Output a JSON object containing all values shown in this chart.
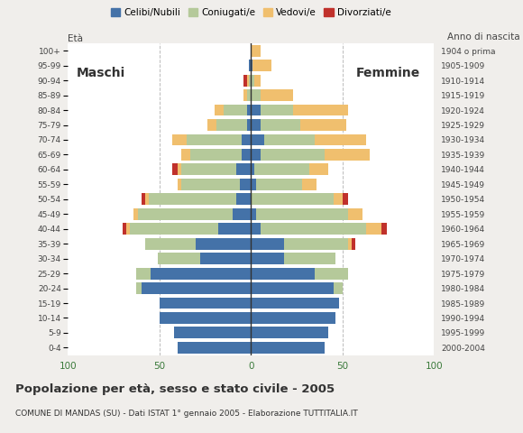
{
  "age_groups": [
    "0-4",
    "5-9",
    "10-14",
    "15-19",
    "20-24",
    "25-29",
    "30-34",
    "35-39",
    "40-44",
    "45-49",
    "50-54",
    "55-59",
    "60-64",
    "65-69",
    "70-74",
    "75-79",
    "80-84",
    "85-89",
    "90-94",
    "95-99",
    "100+"
  ],
  "birth_years": [
    "2000-2004",
    "1995-1999",
    "1990-1994",
    "1985-1989",
    "1980-1984",
    "1975-1979",
    "1970-1974",
    "1965-1969",
    "1960-1964",
    "1955-1959",
    "1950-1954",
    "1945-1949",
    "1940-1944",
    "1935-1939",
    "1930-1934",
    "1925-1929",
    "1920-1924",
    "1915-1919",
    "1910-1914",
    "1905-1909",
    "1904 o prima"
  ],
  "colors": {
    "celibi": "#4472a8",
    "coniugati": "#b5c99a",
    "vedovi": "#f0bf6e",
    "divorziati": "#c0312b"
  },
  "male": {
    "celibi": [
      40,
      42,
      50,
      50,
      60,
      55,
      28,
      30,
      18,
      10,
      8,
      6,
      8,
      5,
      5,
      2,
      2,
      0,
      0,
      1,
      0
    ],
    "coniugati": [
      0,
      0,
      0,
      0,
      3,
      8,
      23,
      28,
      48,
      52,
      48,
      32,
      30,
      28,
      30,
      17,
      13,
      2,
      1,
      0,
      0
    ],
    "vedovi": [
      0,
      0,
      0,
      0,
      0,
      0,
      0,
      0,
      2,
      2,
      2,
      2,
      2,
      5,
      8,
      5,
      5,
      2,
      1,
      0,
      0
    ],
    "divorziati": [
      0,
      0,
      0,
      0,
      0,
      0,
      0,
      0,
      2,
      0,
      2,
      0,
      3,
      0,
      0,
      0,
      0,
      0,
      2,
      0,
      0
    ]
  },
  "female": {
    "celibi": [
      40,
      42,
      46,
      48,
      45,
      35,
      18,
      18,
      5,
      3,
      0,
      3,
      2,
      5,
      7,
      5,
      5,
      0,
      0,
      1,
      0
    ],
    "coniugati": [
      0,
      0,
      0,
      0,
      5,
      18,
      28,
      35,
      58,
      50,
      45,
      25,
      30,
      35,
      28,
      22,
      18,
      5,
      2,
      0,
      0
    ],
    "vedovi": [
      0,
      0,
      0,
      0,
      0,
      0,
      0,
      2,
      8,
      8,
      5,
      8,
      10,
      25,
      28,
      25,
      30,
      18,
      3,
      10,
      5
    ],
    "divorziati": [
      0,
      0,
      0,
      0,
      0,
      0,
      0,
      2,
      3,
      0,
      3,
      0,
      0,
      0,
      0,
      0,
      0,
      0,
      0,
      0,
      0
    ]
  },
  "title": "Popolazione per età, sesso e stato civile - 2005",
  "subtitle": "COMUNE DI MANDAS (SU) - Dati ISTAT 1° gennaio 2005 - Elaborazione TUTTITALIA.IT",
  "label_eta": "Età",
  "label_anno": "Anno di nascita",
  "xlim": 100,
  "legend_labels": [
    "Celibi/Nubili",
    "Coniugati/e",
    "Vedovi/e",
    "Divorziati/e"
  ],
  "male_label": "Maschi",
  "female_label": "Femmine",
  "bg_color": "#f0eeeb",
  "plot_bg": "#ffffff"
}
